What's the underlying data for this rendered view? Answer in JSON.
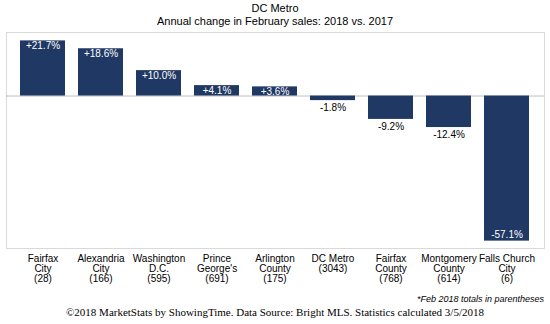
{
  "chart_data": {
    "type": "bar",
    "title": "DC Metro",
    "subtitle": "Annual change in February sales: 2018 vs. 2017",
    "categories": [
      "Fairfax\nCity\n(28)",
      "Alexandria\nCity\n(166)",
      "Washington\nD.C.\n(595)",
      "Prince\nGeorge's\n(691)",
      "Arlington\nCounty\n(175)",
      "DC Metro\n(3043)",
      "Fairfax\nCounty\n(768)",
      "Montgomery\nCounty\n(614)",
      "Falls Church\nCity\n(6)"
    ],
    "values": [
      21.7,
      18.6,
      10.0,
      4.1,
      3.6,
      -1.8,
      -9.2,
      -12.4,
      -57.1
    ],
    "value_labels": [
      "+21.7%",
      "+18.6%",
      "+10.0%",
      "+4.1%",
      "+3.6%",
      "-1.8%",
      "-9.2%",
      "-12.4%",
      "-57.1%"
    ],
    "color": "#1f3864",
    "ylim": [
      -60,
      25
    ],
    "yticks": [
      0
    ],
    "tick_labels": "x",
    "data_labels": true,
    "annotations": [
      "*Feb 2018 totals in parentheses"
    ],
    "caption": "©2018 MarketStats by ShowingTime. Data Source: Bright MLS. Statistics calculated 3/5/2018"
  }
}
